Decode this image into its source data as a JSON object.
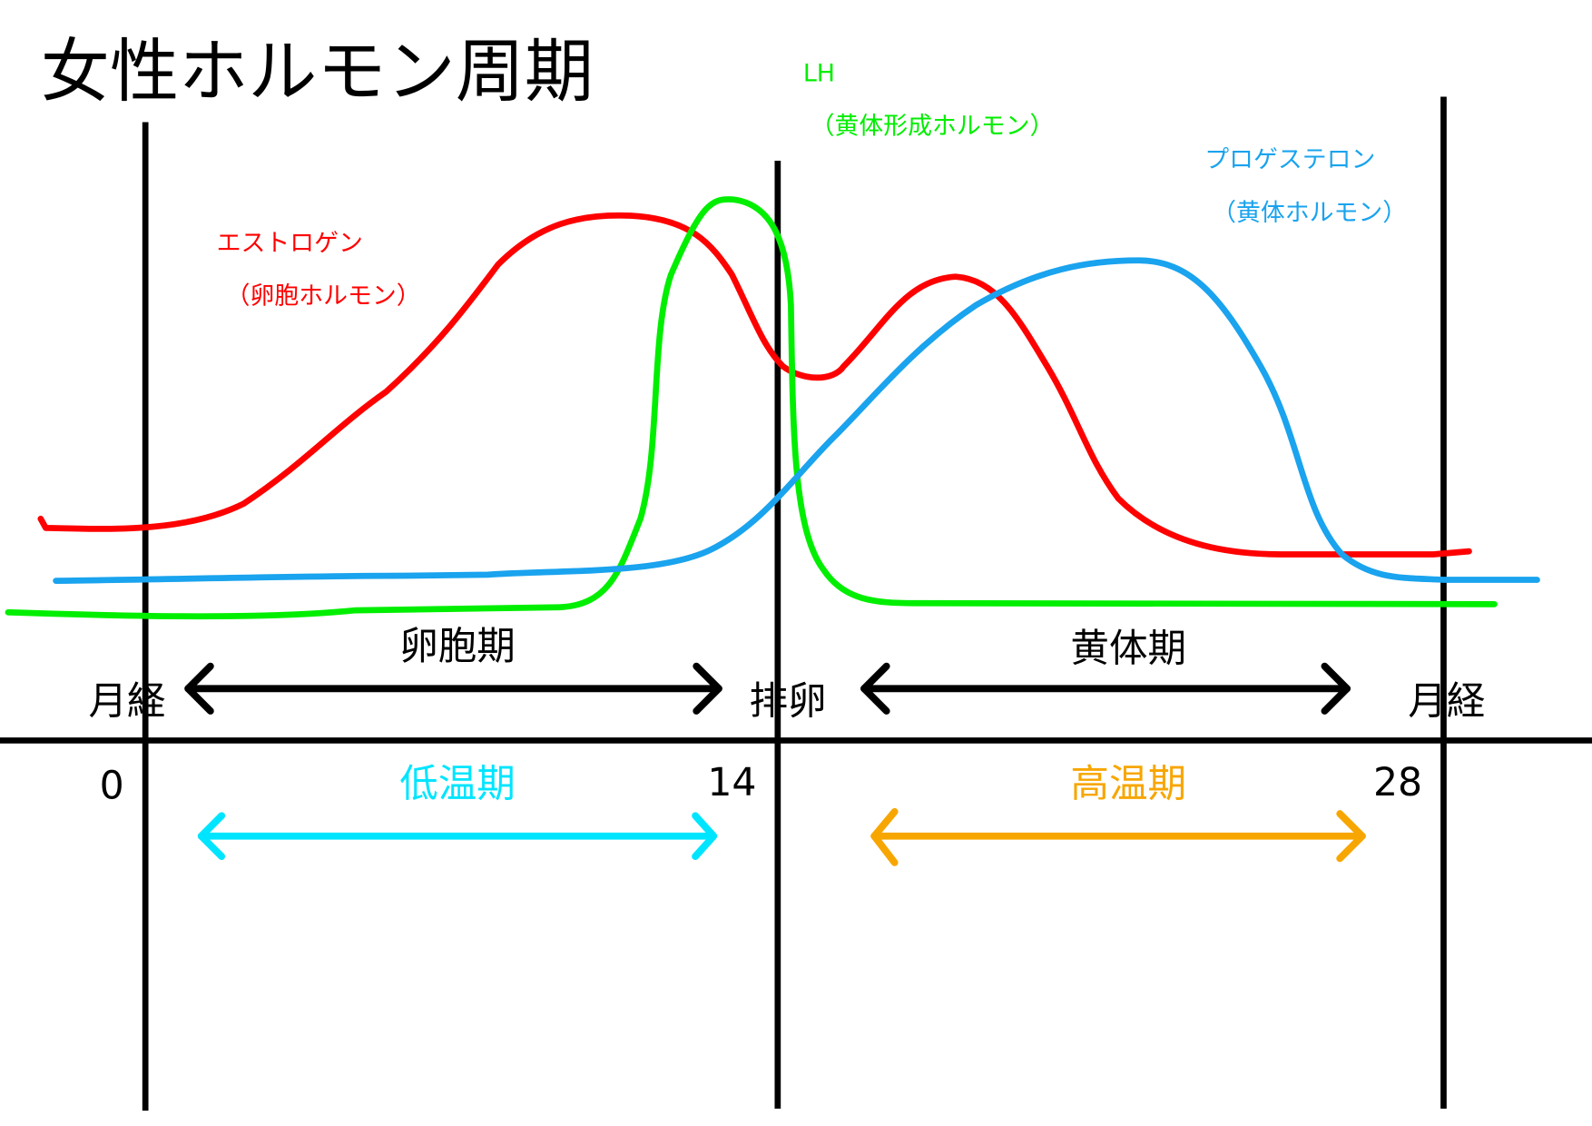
{
  "title": "女性ホルモン周期",
  "hormones": [
    {
      "name": "エストロゲン",
      "note": "（卵胞ホルモン）"
    },
    {
      "name": "LH",
      "note": "（黄体形成ホルモン）"
    },
    {
      "name": "プロゲステロン",
      "note": "（黄体ホルモン）"
    }
  ],
  "phases": [
    "卵胞期",
    "黄体期"
  ],
  "events": [
    "月経",
    "排卵",
    "月経"
  ],
  "days": [
    0,
    14,
    28
  ],
  "temperature": [
    "低温期",
    "高温期"
  ]
}
